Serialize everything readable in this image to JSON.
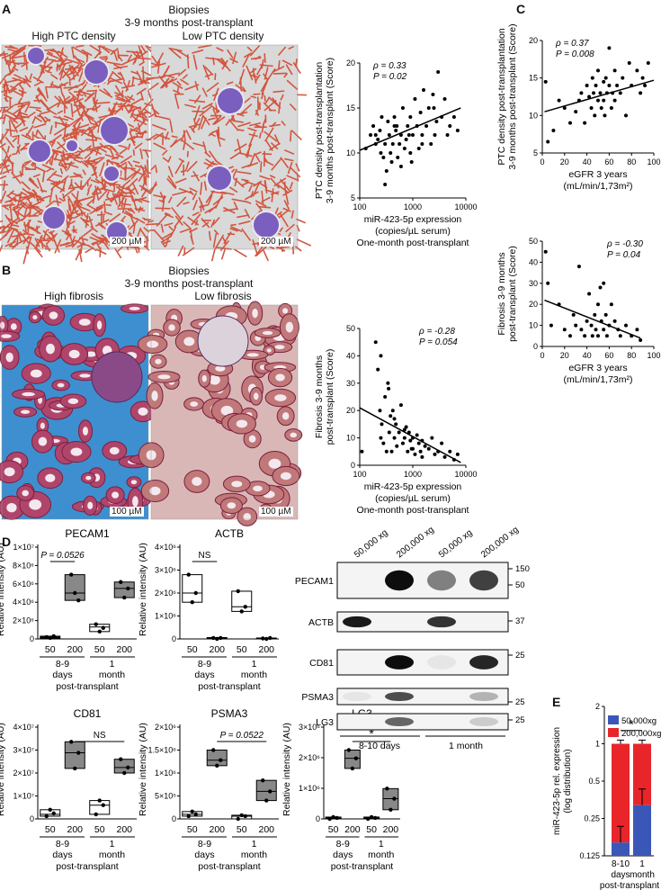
{
  "panels": {
    "a": "A",
    "b": "B",
    "c": "C",
    "d": "D",
    "e": "E"
  },
  "panelA": {
    "title1": "Biopsies",
    "title2": "3-9 months post-transplant",
    "img1_label": "High PTC density",
    "img2_label": "Low PTC density",
    "scale1": "200 µM",
    "scale2": "200 µM"
  },
  "panelB": {
    "title1": "Biopsies",
    "title2": "3-9 months post-transplant",
    "img1_label": "High fibrosis",
    "img2_label": "Low fibrosis",
    "scale1": "100 µM",
    "scale2": "100 µM"
  },
  "scatters": [
    {
      "id": "a",
      "rho": "ρ = 0.33",
      "p": "P = 0.02",
      "ylabel1": "PTC density post-transplantation",
      "ylabel2": "3-9 months post-transplant (Score)",
      "xlabel1": "miR-423-5p expression",
      "xlabel2": "(copies/µL serum)",
      "xlabel3": "One-month post-transplant",
      "xticks": [
        "100",
        "1000",
        "10000"
      ],
      "yticks": [
        "5",
        "10",
        "15",
        "20"
      ],
      "xscale": "log",
      "xlim": [
        100,
        10000
      ],
      "ylim": [
        5,
        20
      ]
    },
    {
      "id": "b",
      "rho": "ρ = -0.28",
      "p": "P = 0.054",
      "ylabel1": "Fibrosis 3-9 months",
      "ylabel2": "post-transplant  (Score)",
      "xlabel1": "miR-423-5p expression",
      "xlabel2": "(copies/µL serum)",
      "xlabel3": "One-month post-transplant",
      "xticks": [
        "100",
        "1000",
        "10000"
      ],
      "yticks": [
        "0",
        "10",
        "20",
        "30",
        "40",
        "50"
      ],
      "xscale": "log",
      "xlim": [
        100,
        10000
      ],
      "ylim": [
        0,
        50
      ]
    },
    {
      "id": "c1",
      "rho": "ρ = 0.37",
      "p": "P = 0.008",
      "ylabel1": "PTC density post-transplantation",
      "ylabel2": "3-9 months post-transplant (Score)",
      "xlabel1": "eGFR 3 years",
      "xlabel2": "(mL/min/1,73m²)",
      "xlabel3": "",
      "xticks": [
        "0",
        "20",
        "40",
        "60",
        "80",
        "100"
      ],
      "yticks": [
        "5",
        "10",
        "15",
        "20"
      ],
      "xscale": "linear",
      "xlim": [
        0,
        100
      ],
      "ylim": [
        5,
        20
      ]
    },
    {
      "id": "c2",
      "rho": "ρ = -0.30",
      "p": "P = 0.04",
      "ylabel1": "Fibrosis 3-9 months",
      "ylabel2": "post-transplant  (Score)",
      "xlabel1": "eGFR 3 years",
      "xlabel2": "(mL/min/1,73m²)",
      "xlabel3": "",
      "xticks": [
        "0",
        "20",
        "40",
        "60",
        "80",
        "100"
      ],
      "yticks": [
        "0",
        "10",
        "20",
        "30",
        "40",
        "50"
      ],
      "xscale": "linear",
      "xlim": [
        0,
        100
      ],
      "ylim": [
        0,
        50
      ]
    }
  ],
  "chart_data": [
    {
      "type": "scatter",
      "x": [
        130,
        160,
        180,
        200,
        220,
        240,
        250,
        260,
        280,
        300,
        320,
        340,
        360,
        380,
        400,
        420,
        450,
        480,
        500,
        520,
        560,
        600,
        650,
        700,
        750,
        800,
        850,
        900,
        950,
        1000,
        1100,
        1200,
        1300,
        1400,
        1500,
        1600,
        1800,
        2000,
        2200,
        2400,
        2600,
        2800,
        3000,
        3500,
        4000,
        4500,
        5000,
        6000,
        7000,
        300,
        600,
        900,
        1500,
        2500,
        200,
        450
      ],
      "y": [
        10.5,
        12,
        13,
        11,
        11.5,
        12.5,
        10,
        14,
        9.5,
        11,
        8,
        13.5,
        12,
        10,
        9,
        11,
        14,
        12.5,
        13,
        9.5,
        11,
        12,
        15,
        10.5,
        11.5,
        13,
        12,
        14,
        9,
        12,
        16,
        13,
        10.5,
        14.5,
        12,
        17,
        13,
        15,
        11,
        16.5,
        12,
        13.5,
        19,
        14,
        16,
        12,
        13,
        14,
        12.5,
        6.5,
        8.5,
        10,
        11,
        15,
        12,
        13
      ],
      "fit": {
        "x": [
          100,
          8000
        ],
        "y": [
          10.3,
          15
        ]
      }
    },
    {
      "type": "scatter",
      "x": [
        110,
        200,
        220,
        240,
        250,
        260,
        280,
        300,
        320,
        340,
        360,
        380,
        400,
        420,
        450,
        480,
        500,
        550,
        600,
        650,
        700,
        750,
        800,
        850,
        900,
        950,
        1000,
        1100,
        1200,
        1300,
        1400,
        1500,
        1700,
        2000,
        2300,
        2600,
        3000,
        3500,
        4000,
        5000,
        6000,
        7000,
        250,
        350,
        450,
        700,
        1000,
        1500
      ],
      "y": [
        5,
        45,
        35,
        20,
        10,
        15,
        8,
        25,
        5,
        30,
        12,
        18,
        5,
        20,
        10,
        15,
        7,
        12,
        22,
        8,
        10,
        14,
        5,
        12,
        9,
        6,
        10,
        4,
        11,
        8,
        5,
        9,
        7,
        6,
        10,
        4,
        5,
        8,
        3,
        5,
        2,
        4,
        40,
        28,
        17,
        13,
        6,
        3
      ],
      "fit": {
        "x": [
          100,
          8000
        ],
        "y": [
          21,
          1
        ]
      }
    },
    {
      "type": "scatter",
      "x": [
        3,
        5,
        10,
        15,
        20,
        25,
        30,
        33,
        35,
        38,
        40,
        42,
        44,
        45,
        46,
        47,
        48,
        50,
        50,
        52,
        53,
        55,
        55,
        56,
        57,
        58,
        60,
        60,
        62,
        63,
        65,
        65,
        67,
        70,
        72,
        75,
        78,
        80,
        85,
        88,
        90,
        92,
        95
      ],
      "y": [
        14.5,
        6.5,
        8,
        12,
        11,
        9,
        10.5,
        12,
        13,
        9,
        14,
        12.5,
        11,
        15,
        13,
        10,
        14,
        12,
        16,
        13,
        11,
        14.5,
        12,
        10,
        15,
        13,
        19,
        14,
        11,
        13,
        16,
        12,
        14,
        13,
        15,
        10,
        17,
        14,
        16,
        13,
        15,
        14,
        17
      ],
      "fit": {
        "x": [
          2,
          100
        ],
        "y": [
          10.5,
          14.7
        ]
      }
    },
    {
      "type": "scatter",
      "x": [
        3,
        5,
        8,
        15,
        20,
        25,
        28,
        30,
        33,
        35,
        38,
        40,
        42,
        44,
        45,
        47,
        48,
        50,
        50,
        52,
        53,
        55,
        55,
        57,
        58,
        60,
        62,
        65,
        68,
        70,
        75,
        80,
        85,
        88
      ],
      "y": [
        45,
        30,
        10,
        20,
        8,
        5,
        15,
        10,
        38,
        8,
        5,
        12,
        25,
        10,
        5,
        15,
        8,
        20,
        5,
        28,
        12,
        8,
        30,
        15,
        5,
        10,
        20,
        12,
        8,
        5,
        10,
        5,
        8,
        3
      ],
      "fit": {
        "x": [
          2,
          88
        ],
        "y": [
          22,
          4
        ]
      }
    },
    {
      "type": "bar",
      "title": "miR-423-5p rel. expression (log distribution)",
      "ylabel": "miR-423-5p rel. expression\n(log distribution)",
      "categories": [
        "8-10 days",
        "1 month"
      ],
      "series": [
        {
          "name": "50,000xg",
          "values": [
            0.16,
            0.32
          ],
          "color": "#3a57b8"
        },
        {
          "name": "200,000xg",
          "values": [
            0.84,
            0.68
          ],
          "color": "#e8262a"
        }
      ],
      "yscale": "log",
      "yticks": [
        "0.125",
        "0.25",
        "0.5",
        "1",
        "2"
      ],
      "ylim": [
        0.125,
        2
      ],
      "annotation": "*"
    }
  ],
  "panelD": {
    "ylabel": "Relative intensity (AU)",
    "xcats": [
      "50",
      "200",
      "50",
      "200"
    ],
    "group1": [
      "8-9",
      "days"
    ],
    "group2": [
      "1",
      "month"
    ],
    "group3": "post-transplant",
    "charts": [
      {
        "title": "PECAM1",
        "yticks": [
          "0",
          "2×10⁶",
          "4×10⁶",
          "6×10⁶",
          "8×10⁶",
          "1×10⁷"
        ],
        "ann": "P = 0.0526",
        "annPos": "left"
      },
      {
        "title": "ACTB",
        "yticks": [
          "0",
          "1×10⁶",
          "2×10⁶",
          "3×10⁶",
          "4×10⁶"
        ],
        "ann": "NS",
        "annPos": "left"
      },
      {
        "title": "CD81",
        "yticks": [
          "0",
          "1×10⁷",
          "2×10⁷",
          "3×10⁷",
          "4×10⁷"
        ],
        "ann": "NS",
        "annPos": "right"
      },
      {
        "title": "PSMA3",
        "yticks": [
          "0",
          "5×10⁵",
          "1×10⁶",
          "1.5×10⁶",
          "2×10⁶"
        ],
        "ann": "P = 0.0522",
        "annPos": "right"
      },
      {
        "title": "LG3",
        "yticks": [
          "0",
          "1×10⁶",
          "2×10⁶",
          "3×10⁶"
        ],
        "ann": "*",
        "annPos": "right"
      }
    ],
    "blot": {
      "lanes": [
        "50,000 xg",
        "200,000 xg",
        "50,000 xg",
        "200,000 xg"
      ],
      "rows": [
        "PECAM1",
        "ACTB",
        "CD81",
        "PSMA3",
        "LG3"
      ],
      "markers": [
        "150",
        "50",
        "37",
        "25",
        "25",
        "25"
      ],
      "groups": [
        "8-10 days",
        "1 month"
      ]
    }
  },
  "panelE": {
    "xlabel": "post-transplant",
    "groups": [
      [
        "8-10",
        "days"
      ],
      [
        "1",
        "month"
      ]
    ]
  }
}
